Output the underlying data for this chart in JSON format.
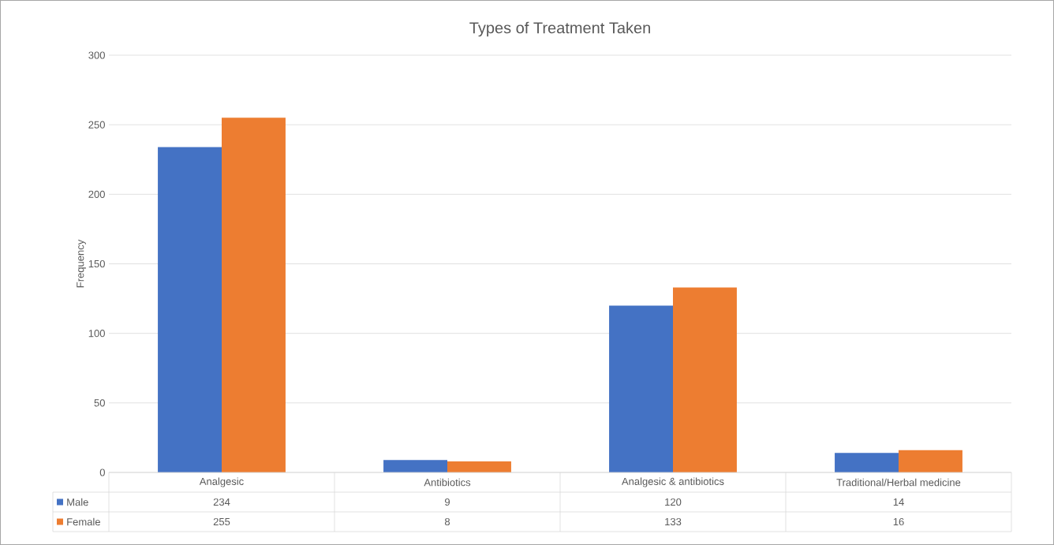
{
  "chart_data": {
    "type": "bar",
    "title": "Types of Treatment Taken",
    "ylabel": "Frequency",
    "categories": [
      "Analgesic",
      "Antibiotics",
      "Analgesic & antibiotics",
      "Traditional/Herbal medicine"
    ],
    "series": [
      {
        "name": "Male",
        "color": "#4472c4",
        "values": [
          234,
          9,
          120,
          14
        ]
      },
      {
        "name": "Female",
        "color": "#ed7d31",
        "values": [
          255,
          8,
          133,
          16
        ]
      }
    ],
    "ylim": [
      0,
      300
    ],
    "yticks": [
      0,
      50,
      100,
      150,
      200,
      250,
      300
    ],
    "grid": "y",
    "legend": "bottom",
    "data_labels": true
  }
}
